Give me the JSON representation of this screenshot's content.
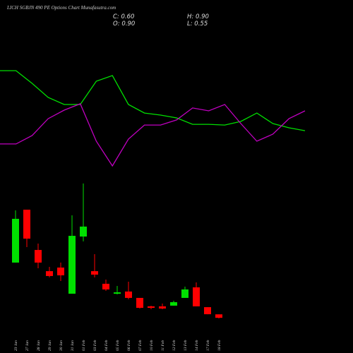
{
  "header": {
    "title": "LICH SGBJN 490 PE Options Chart Munafasutra.com",
    "close": "C: 0.60",
    "open": "O: 0.90",
    "high": "H: 0.90",
    "low": "L: 0.55"
  },
  "chart_data": [
    {
      "type": "line",
      "ylim": [
        0,
        100
      ],
      "series": [
        {
          "color": "#00e000",
          "values": [
            88.2,
            88.2,
            77.6,
            65.9,
            60,
            60,
            79.4,
            84.1,
            60,
            52.9,
            51.2,
            48.8,
            43.5,
            43.5,
            42.9,
            45.9,
            52.9,
            44.1,
            40.6,
            38.2
          ]
        },
        {
          "color": "#c000c0",
          "values": [
            27.1,
            27.1,
            34.1,
            48.2,
            55.3,
            60.6,
            29.4,
            8.8,
            31.2,
            42.9,
            42.9,
            47.1,
            57.1,
            54.7,
            60,
            44.1,
            29.4,
            35.3,
            48.2,
            54.7
          ]
        }
      ]
    },
    {
      "type": "candlestick",
      "ylim": [
        0,
        12.5
      ],
      "up_color": "#00e000",
      "down_color": "#ff0000",
      "categories": [
        "23 Jan",
        "27 Jan",
        "28 Jan",
        "29 Jan",
        "30 Jan",
        "31 Jan",
        "01 Feb",
        "03 Feb",
        "04 Feb",
        "05 Feb",
        "06 Feb",
        "07 Feb",
        "10 Feb",
        "11 Feb",
        "12 Feb",
        "13 Feb",
        "14 Feb",
        "17 Feb",
        "18 Feb"
      ],
      "open": [
        5.37,
        9.94,
        6.46,
        4.63,
        4.94,
        2.68,
        7.62,
        4.63,
        3.54,
        2.68,
        2.87,
        2.32,
        1.59,
        1.59,
        1.65,
        2.32,
        3.23,
        1.52,
        0.9
      ],
      "high": [
        9.88,
        9.94,
        7.01,
        5.0,
        5.37,
        9.45,
        12.2,
        6.1,
        3.9,
        3.35,
        3.72,
        2.32,
        1.65,
        1.83,
        2.07,
        3.29,
        3.66,
        1.52,
        0.9
      ],
      "low": [
        5.37,
        6.71,
        4.88,
        4.09,
        3.78,
        2.68,
        7.2,
        4.09,
        2.93,
        2.62,
        2.2,
        1.4,
        1.34,
        1.34,
        1.65,
        2.32,
        1.59,
        0.91,
        0.55
      ],
      "close": [
        9.15,
        7.44,
        5.37,
        4.21,
        4.27,
        7.68,
        8.48,
        4.33,
        3.05,
        2.8,
        2.32,
        1.46,
        1.46,
        1.4,
        1.95,
        3.05,
        1.59,
        0.91,
        0.6
      ]
    }
  ]
}
